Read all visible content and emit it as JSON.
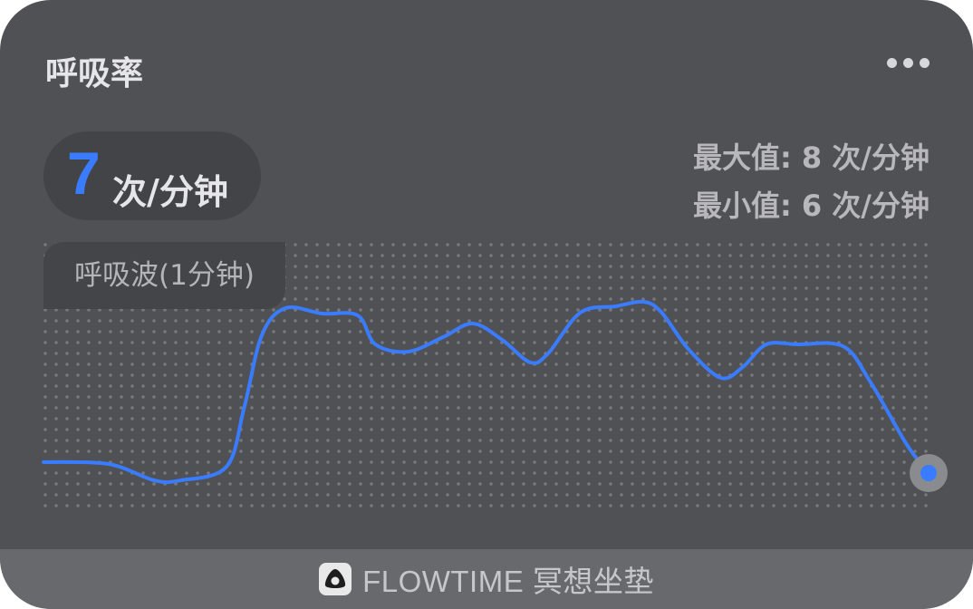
{
  "widget": {
    "title": "呼吸率",
    "more_icon": "ellipsis-horizontal-icon",
    "current_value": "7",
    "unit": "次/分钟",
    "max_label": "最大值: 8 次/分钟",
    "min_label": "最小值: 6 次/分钟",
    "wave_label": "呼吸波(1分钟)",
    "accent_color": "#3a7cff"
  },
  "chart_data": {
    "type": "line",
    "title": "呼吸波(1分钟)",
    "x_range": [
      0,
      60
    ],
    "y_range": [
      0,
      100
    ],
    "grid": "dotted",
    "series": [
      {
        "color": "#3a7cff",
        "points": [
          [
            0,
            16.7
          ],
          [
            4.4,
            16
          ],
          [
            7.5,
            9.7
          ],
          [
            9.3,
            9.7
          ],
          [
            12.4,
            14.9
          ],
          [
            13.6,
            37.5
          ],
          [
            14.8,
            65.3
          ],
          [
            16.4,
            75.7
          ],
          [
            18.9,
            73.6
          ],
          [
            21.3,
            72.9
          ],
          [
            22.5,
            61.8
          ],
          [
            24.7,
            59
          ],
          [
            27.1,
            64.6
          ],
          [
            29.1,
            69.8
          ],
          [
            31.1,
            63.5
          ],
          [
            33,
            54.9
          ],
          [
            34.2,
            58.3
          ],
          [
            36.4,
            74
          ],
          [
            38.8,
            76.4
          ],
          [
            40.7,
            78.1
          ],
          [
            41.9,
            74
          ],
          [
            43.7,
            60.1
          ],
          [
            45.9,
            49
          ],
          [
            47.4,
            53.1
          ],
          [
            49,
            61.8
          ],
          [
            51.1,
            61.8
          ],
          [
            54.2,
            61.1
          ],
          [
            56,
            47.9
          ],
          [
            58.5,
            23.6
          ],
          [
            60,
            12.5
          ]
        ]
      }
    ]
  },
  "footer": {
    "logo_icon": "flowtime-logo-icon",
    "brand": "FLOWTIME 冥想坐垫"
  }
}
